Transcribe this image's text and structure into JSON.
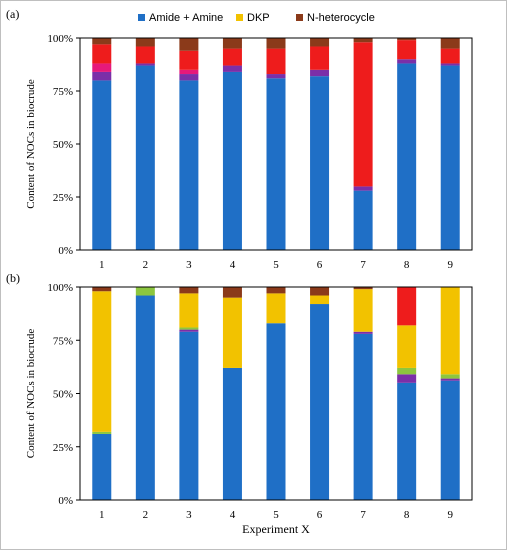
{
  "legend": [
    {
      "label": "Amide + Amine",
      "color": "#1f6fc6"
    },
    {
      "label": "DKP",
      "color": "#f2c200"
    },
    {
      "label": "N-heterocycle",
      "color": "#8b3a1a"
    }
  ],
  "chart_data": [
    {
      "type": "bar",
      "panel_label": "(a)",
      "stacked": true,
      "ylabel": "Content of NOCs in biocrude",
      "xlabel": "",
      "categories": [
        "1",
        "2",
        "3",
        "4",
        "5",
        "6",
        "7",
        "8",
        "9"
      ],
      "ylim": [
        0,
        100
      ],
      "yticks": [
        "0%",
        "25%",
        "50%",
        "75%",
        "100%"
      ],
      "series": [
        {
          "name": "Amide + Amine",
          "color": "#1f6fc6",
          "values": [
            80,
            87,
            80,
            84,
            81,
            82,
            28,
            88,
            87
          ]
        },
        {
          "name": "Purple",
          "color": "#7b2fa8",
          "values": [
            4,
            1,
            3,
            3,
            2,
            3,
            2,
            2,
            1
          ]
        },
        {
          "name": "Magenta",
          "color": "#e6197a",
          "values": [
            4,
            0,
            2,
            0,
            0,
            0,
            0,
            0,
            0
          ]
        },
        {
          "name": "Red",
          "color": "#ee1c1c",
          "values": [
            9,
            8,
            9,
            8,
            12,
            11,
            68,
            9,
            7
          ]
        },
        {
          "name": "N-heterocycle",
          "color": "#8b3a1a",
          "values": [
            3,
            4,
            6,
            5,
            5,
            4,
            2,
            1,
            5
          ]
        }
      ]
    },
    {
      "type": "bar",
      "panel_label": "(b)",
      "stacked": true,
      "ylabel": "Content of NOCs in biocrude",
      "xlabel": "Experiment X",
      "categories": [
        "1",
        "2",
        "3",
        "4",
        "5",
        "6",
        "7",
        "8",
        "9"
      ],
      "ylim": [
        0,
        100
      ],
      "yticks": [
        "0%",
        "25%",
        "50%",
        "75%",
        "100%"
      ],
      "series": [
        {
          "name": "Amide + Amine",
          "color": "#1f6fc6",
          "values": [
            31,
            96,
            79,
            62,
            83,
            92,
            78,
            55,
            56
          ]
        },
        {
          "name": "Purple",
          "color": "#7b2fa8",
          "values": [
            0,
            0,
            1,
            0,
            0,
            0,
            1,
            4,
            1
          ]
        },
        {
          "name": "Green",
          "color": "#8cc63f",
          "values": [
            1,
            0,
            1,
            0,
            0,
            0,
            0,
            3,
            2
          ]
        },
        {
          "name": "DKP",
          "color": "#f2c200",
          "values": [
            66,
            0,
            16,
            33,
            14,
            4,
            20,
            20,
            41
          ]
        },
        {
          "name": "Green top",
          "color": "#8cc63f",
          "values": [
            0,
            4,
            0,
            0,
            0,
            0,
            0,
            0,
            0
          ]
        },
        {
          "name": "Red",
          "color": "#ee1c1c",
          "values": [
            0,
            0,
            0,
            0,
            0,
            0,
            0,
            18,
            0
          ]
        },
        {
          "name": "N-heterocycle",
          "color": "#8b3a1a",
          "values": [
            2,
            0,
            3,
            5,
            3,
            4,
            1,
            0,
            0
          ]
        }
      ]
    }
  ]
}
